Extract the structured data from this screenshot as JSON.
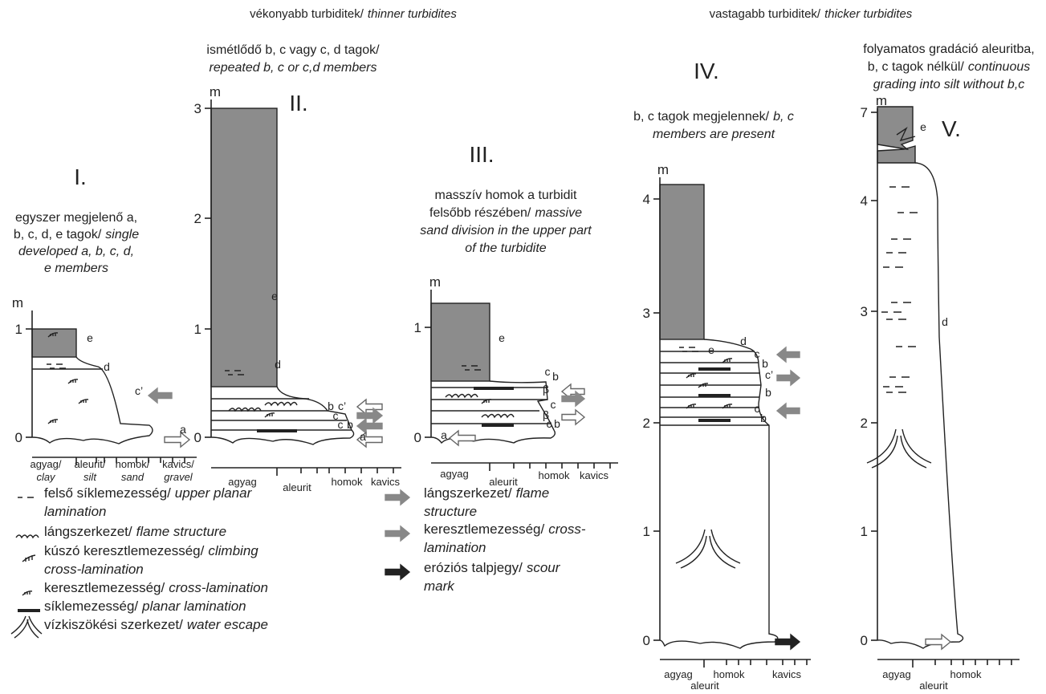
{
  "header": {
    "thin": {
      "hu": "vékonyabb turbiditek/",
      "en": "thinner turbidites"
    },
    "thick": {
      "hu": "vastagabb turbiditek/",
      "en": "thicker turbidites"
    }
  },
  "columns": [
    {
      "roman": "I.",
      "description": [
        {
          "hu": "egyszer megjelenő a,"
        },
        {
          "hu": "b, c, d, e tagok/",
          "en": "single"
        },
        {
          "en": "developed a, b, c, d,"
        },
        {
          "en": "e members"
        }
      ],
      "unit": "m",
      "ticks": [
        "1",
        "0"
      ],
      "letters": [
        "e",
        "d",
        "c’",
        "a"
      ],
      "xlabels": [
        {
          "hu": "agyag/",
          "en": "clay"
        },
        {
          "hu": "aleurit/",
          "en": "silt"
        },
        {
          "hu": "homok/",
          "en": "sand"
        },
        {
          "hu": "kavics/",
          "en": "gravel"
        }
      ]
    },
    {
      "roman": "II.",
      "description": [
        {
          "hu": "ismétlődő b, c vagy c, d tagok/"
        },
        {
          "en": "repeated b, c or c,d members"
        }
      ],
      "unit": "m",
      "ticks": [
        "3",
        "2",
        "1",
        "0"
      ],
      "letters": [
        "e",
        "d",
        "b",
        "c’",
        "c",
        "c",
        "b",
        "a"
      ],
      "xlabels": [
        {
          "hu": "agyag"
        },
        {
          "hu": "aleurit"
        },
        {
          "hu": "homok"
        },
        {
          "hu": "kavics"
        }
      ]
    },
    {
      "roman": "III.",
      "description": [
        {
          "hu": "masszív homok a turbidit"
        },
        {
          "hu": "felsőbb részében/",
          "en": "massive"
        },
        {
          "en": "sand division in the upper part"
        },
        {
          "en": "of the turbidite"
        }
      ],
      "unit": "m",
      "ticks": [
        "1",
        "0"
      ],
      "letters": [
        "e",
        "c",
        "b",
        "β",
        "c",
        "β",
        "c",
        "b",
        "a"
      ],
      "xlabels": [
        {
          "hu": "agyag"
        },
        {
          "hu": "aleurit"
        },
        {
          "hu": "homok"
        },
        {
          "hu": "kavics"
        }
      ]
    },
    {
      "roman": "IV.",
      "description": [
        {
          "hu": "b, c tagok megjelennek/",
          "en": "b, c"
        },
        {
          "en": "members are present"
        }
      ],
      "unit": "m",
      "ticks": [
        "4",
        "3",
        "2",
        "1",
        "0"
      ],
      "letters": [
        "e",
        "d",
        "c",
        "b",
        "c’",
        "b",
        "c",
        "b"
      ],
      "xlabels": [
        {
          "hu": "agyag"
        },
        {
          "hu": "aleurit"
        },
        {
          "hu": "homok"
        },
        {
          "hu": "kavics"
        }
      ]
    },
    {
      "roman": "V.",
      "description": [
        {
          "hu": "folyamatos gradáció aleuritba,"
        },
        {
          "hu": "b, c tagok nélkül/",
          "en": "continuous"
        },
        {
          "en": "grading into silt without b,c"
        }
      ],
      "unit": "m",
      "ticks": [
        "7",
        "4",
        "3",
        "2",
        "1",
        "0"
      ],
      "letters": [
        "e",
        "d"
      ],
      "xlabels": [
        {
          "hu": "agyag"
        },
        {
          "hu": "aleurit"
        },
        {
          "hu": "homok"
        }
      ]
    }
  ],
  "legend": [
    [
      {
        "hu": "felső síklemezesség/",
        "en": "upper planar"
      },
      {
        "en": "lamination"
      }
    ],
    [
      {
        "hu": "lángszerkezet/",
        "en": "flame structure"
      }
    ],
    [
      {
        "hu": "kúszó keresztlemezesség/",
        "en": "climbing"
      },
      {
        "en": "cross-lamination"
      }
    ],
    [
      {
        "hu": "keresztlemezesség/",
        "en": "cross-lamination"
      }
    ],
    [
      {
        "hu": "síklemezesség/",
        "en": "planar lamination"
      }
    ],
    [
      {
        "hu": "vízkiszökési szerkezet/",
        "en": "water escape"
      }
    ],
    [
      {
        "hu": "lángszerkezet/",
        "en": "flame"
      },
      {
        "en": "structure"
      }
    ],
    [
      {
        "hu": "keresztlemezesség/",
        "en": "cross-"
      },
      {
        "en": "lamination"
      }
    ],
    [
      {
        "hu": "eróziós talpjegy/",
        "en": "scour"
      },
      {
        "en": "mark"
      }
    ]
  ]
}
